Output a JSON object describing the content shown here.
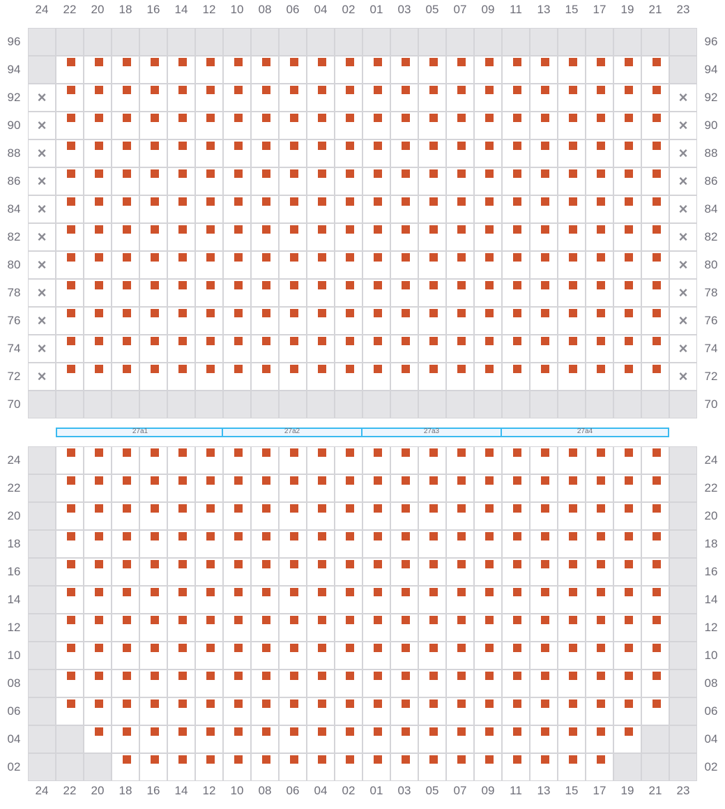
{
  "columns": [
    "24",
    "22",
    "20",
    "18",
    "16",
    "14",
    "12",
    "10",
    "08",
    "06",
    "04",
    "02",
    "01",
    "03",
    "05",
    "07",
    "09",
    "11",
    "13",
    "15",
    "17",
    "19",
    "21",
    "23"
  ],
  "legend_codes": {
    "g": "unavailable",
    "s": "seat",
    "x": "blocked"
  },
  "colors": {
    "seat": "#cf522b",
    "unavailable": "#e4e4e7",
    "grid": "#d4d4d8",
    "section_border": "#3bbaf0"
  },
  "upper_block": {
    "rows": [
      {
        "label": "96",
        "cells": "gggggggggggggggggggggggg"
      },
      {
        "label": "94",
        "cells": "gssssssssssssssssssssssg"
      },
      {
        "label": "92",
        "cells": "xssssssssssssssssssssssx"
      },
      {
        "label": "90",
        "cells": "xssssssssssssssssssssssx"
      },
      {
        "label": "88",
        "cells": "xssssssssssssssssssssssx"
      },
      {
        "label": "86",
        "cells": "xssssssssssssssssssssssx"
      },
      {
        "label": "84",
        "cells": "xssssssssssssssssssssssx"
      },
      {
        "label": "82",
        "cells": "xssssssssssssssssssssssx"
      },
      {
        "label": "80",
        "cells": "xssssssssssssssssssssssx"
      },
      {
        "label": "78",
        "cells": "xssssssssssssssssssssssx"
      },
      {
        "label": "76",
        "cells": "xssssssssssssssssssssssx"
      },
      {
        "label": "74",
        "cells": "xssssssssssssssssssssssx"
      },
      {
        "label": "72",
        "cells": "xssssssssssssssssssssssx"
      },
      {
        "label": "70",
        "cells": "gggggggggggggggggggggggg"
      }
    ]
  },
  "sections": [
    {
      "label": "27a1",
      "from_col": 1,
      "to_col": 7
    },
    {
      "label": "27a2",
      "from_col": 7,
      "to_col": 12
    },
    {
      "label": "27a3",
      "from_col": 12,
      "to_col": 17
    },
    {
      "label": "27a4",
      "from_col": 17,
      "to_col": 23
    }
  ],
  "lower_block": {
    "rows": [
      {
        "label": "24",
        "cells": "gssssssssssssssssssssssg"
      },
      {
        "label": "22",
        "cells": "gssssssssssssssssssssssg"
      },
      {
        "label": "20",
        "cells": "gssssssssssssssssssssssg"
      },
      {
        "label": "18",
        "cells": "gssssssssssssssssssssssg"
      },
      {
        "label": "16",
        "cells": "gssssssssssssssssssssssg"
      },
      {
        "label": "14",
        "cells": "gssssssssssssssssssssssg"
      },
      {
        "label": "12",
        "cells": "gssssssssssssssssssssssg"
      },
      {
        "label": "10",
        "cells": "gssssssssssssssssssssssg"
      },
      {
        "label": "08",
        "cells": "gssssssssssssssssssssssg"
      },
      {
        "label": "06",
        "cells": "gssssssssssssssssssssssg"
      },
      {
        "label": "04",
        "cells": "ggssssssssssssssssssssgg"
      },
      {
        "label": "02",
        "cells": "gggssssssssssssssssssggg"
      }
    ]
  },
  "blocked_glyph": "×"
}
